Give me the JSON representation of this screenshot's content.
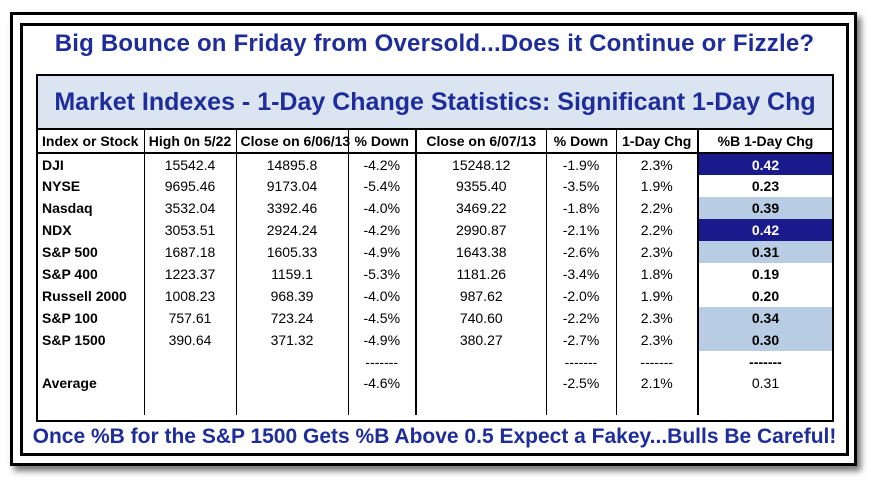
{
  "headline": "Big Bounce on Friday from Oversold...Does it Continue or Fizzle?",
  "table_title": "Market Indexes - 1-Day Change Statistics: Significant 1-Day Chg",
  "columns": [
    "Index or Stock",
    "High 0n 5/22",
    "Close on 6/06/13",
    "% Down",
    "Close on 6/07/13",
    "% Down",
    "1-Day Chg",
    "%B 1-Day Chg"
  ],
  "rows": [
    {
      "name": "DJI",
      "high": "15542.4",
      "close1": "14895.8",
      "down1": "-4.2%",
      "close2": "15248.12",
      "down2": "-1.9%",
      "chg": "2.3%",
      "pb": "0.42",
      "pb_style": "dark"
    },
    {
      "name": "NYSE",
      "high": "9695.46",
      "close1": "9173.04",
      "down1": "-5.4%",
      "close2": "9355.40",
      "down2": "-3.5%",
      "chg": "1.9%",
      "pb": "0.23",
      "pb_style": "white"
    },
    {
      "name": "Nasdaq",
      "high": "3532.04",
      "close1": "3392.46",
      "down1": "-4.0%",
      "close2": "3469.22",
      "down2": "-1.8%",
      "chg": "2.2%",
      "pb": "0.39",
      "pb_style": "light"
    },
    {
      "name": "NDX",
      "high": "3053.51",
      "close1": "2924.24",
      "down1": "-4.2%",
      "close2": "2990.87",
      "down2": "-2.1%",
      "chg": "2.2%",
      "pb": "0.42",
      "pb_style": "dark"
    },
    {
      "name": "S&P 500",
      "high": "1687.18",
      "close1": "1605.33",
      "down1": "-4.9%",
      "close2": "1643.38",
      "down2": "-2.6%",
      "chg": "2.3%",
      "pb": "0.31",
      "pb_style": "light"
    },
    {
      "name": "S&P 400",
      "high": "1223.37",
      "close1": "1159.1",
      "down1": "-5.3%",
      "close2": "1181.26",
      "down2": "-3.4%",
      "chg": "1.8%",
      "pb": "0.19",
      "pb_style": "white"
    },
    {
      "name": "Russell 2000",
      "high": "1008.23",
      "close1": "968.39",
      "down1": "-4.0%",
      "close2": "987.62",
      "down2": "-2.0%",
      "chg": "1.9%",
      "pb": "0.20",
      "pb_style": "white"
    },
    {
      "name": "S&P 100",
      "high": "757.61",
      "close1": "723.24",
      "down1": "-4.5%",
      "close2": "740.60",
      "down2": "-2.2%",
      "chg": "2.3%",
      "pb": "0.34",
      "pb_style": "light"
    },
    {
      "name": "S&P 1500",
      "high": "390.64",
      "close1": "371.32",
      "down1": "-4.9%",
      "close2": "380.27",
      "down2": "-2.7%",
      "chg": "2.3%",
      "pb": "0.30",
      "pb_style": "light"
    }
  ],
  "dashes": {
    "down1": "-------",
    "down2": "-------",
    "chg": "-------",
    "pb": "-------"
  },
  "average": {
    "name": "Average",
    "down1": "-4.6%",
    "down2": "-2.5%",
    "chg": "2.1%",
    "pb": "0.31"
  },
  "footer": "Once %B for the S&P 1500 Gets %B Above 0.5 Expect a Fakey...Bulls Be Careful!",
  "colors": {
    "title_blue": "#1f2d9a",
    "band_bg": "#dbe5f1",
    "pb_dark": "#1a1a8c",
    "pb_light": "#b8cce4"
  }
}
